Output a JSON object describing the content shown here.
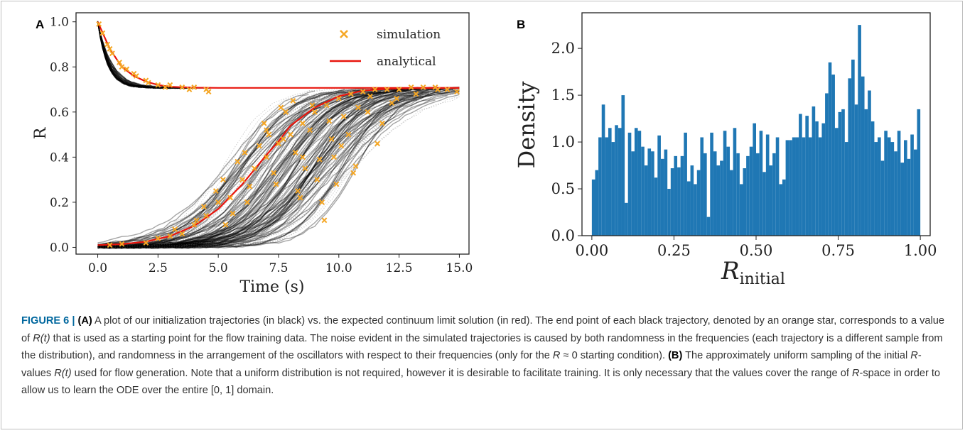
{
  "colors": {
    "simulation": "#f5a623",
    "analytical": "#e8150d",
    "trajectory": "#000000",
    "histogram": "#1f77b4",
    "caption_label": "#00679e"
  },
  "chart_data": [
    {
      "panel": "A",
      "type": "scatter",
      "xlabel": "Time (s)",
      "ylabel": "R",
      "xlim": [
        -0.9,
        15.4
      ],
      "ylim": [
        -0.03,
        1.04
      ],
      "xticks": [
        "0.0",
        "2.5",
        "5.0",
        "7.5",
        "10.0",
        "12.5",
        "15.0"
      ],
      "yticks": [
        "0.0",
        "0.2",
        "0.4",
        "0.6",
        "0.8",
        "1.0"
      ],
      "legend": {
        "placement": "top-right",
        "entries": [
          "simulation",
          "analytical"
        ]
      },
      "grid": false,
      "series": [
        {
          "name": "analytical",
          "kind": "line",
          "x": [
            0,
            0.5,
            1,
            1.5,
            2,
            2.5,
            3,
            4,
            5,
            7.5,
            10,
            15
          ],
          "y": [
            1.0,
            0.88,
            0.8,
            0.76,
            0.735,
            0.72,
            0.712,
            0.708,
            0.707,
            0.707,
            0.707,
            0.707
          ]
        },
        {
          "name": "analytical",
          "kind": "line",
          "x": [
            0,
            1,
            2,
            3,
            4,
            5,
            6,
            7,
            7.5,
            8,
            9,
            10,
            11,
            12,
            13,
            15
          ],
          "y": [
            0.01,
            0.014,
            0.025,
            0.05,
            0.095,
            0.17,
            0.28,
            0.41,
            0.47,
            0.54,
            0.62,
            0.67,
            0.695,
            0.703,
            0.706,
            0.707
          ]
        },
        {
          "name": "simulation",
          "kind": "points",
          "x": [
            0.05,
            0.2,
            0.4,
            0.6,
            0.9,
            1.2,
            1.6,
            2.0,
            2.5,
            3.0,
            3.5,
            4.0,
            4.5,
            4.6,
            1.0,
            1.5,
            2.8,
            0.5,
            2.1,
            3.8,
            0.5,
            1.0,
            2.0,
            2.5,
            3.0,
            3.5,
            4.0,
            4.5,
            5.0,
            5.5,
            6.0,
            6.5,
            7.0,
            7.5,
            8.0,
            8.5,
            9.0,
            9.5,
            10.0,
            10.5,
            11.0,
            11.5,
            12.0,
            12.5,
            13.0,
            13.5,
            14.0,
            14.5,
            14.9,
            3.2,
            4.1,
            4.9,
            5.2,
            5.8,
            6.3,
            6.7,
            7.1,
            7.4,
            7.8,
            8.2,
            8.6,
            8.9,
            9.3,
            9.7,
            10.2,
            10.8,
            11.3,
            5.6,
            6.1,
            6.9,
            7.6,
            8.3,
            9.1,
            9.8,
            10.4,
            11.2,
            12.2,
            13.2,
            14.1,
            4.4,
            5.3,
            6.2,
            7.3,
            8.1,
            8.8,
            9.6,
            10.1,
            10.7,
            11.8,
            8.4,
            9.2,
            9.9,
            10.6,
            11.6,
            12.4,
            7.0,
            7.7,
            8.5,
            9.4
          ],
          "y": [
            0.99,
            0.95,
            0.9,
            0.86,
            0.82,
            0.79,
            0.76,
            0.74,
            0.72,
            0.72,
            0.71,
            0.71,
            0.7,
            0.69,
            0.8,
            0.77,
            0.71,
            0.88,
            0.73,
            0.7,
            0.01,
            0.015,
            0.02,
            0.04,
            0.05,
            0.06,
            0.1,
            0.14,
            0.2,
            0.22,
            0.3,
            0.35,
            0.4,
            0.46,
            0.5,
            0.55,
            0.6,
            0.63,
            0.66,
            0.68,
            0.69,
            0.7,
            0.7,
            0.7,
            0.71,
            0.71,
            0.71,
            0.7,
            0.69,
            0.08,
            0.12,
            0.25,
            0.3,
            0.38,
            0.27,
            0.45,
            0.5,
            0.28,
            0.6,
            0.42,
            0.35,
            0.63,
            0.2,
            0.48,
            0.58,
            0.62,
            0.67,
            0.15,
            0.42,
            0.55,
            0.62,
            0.25,
            0.3,
            0.4,
            0.5,
            0.6,
            0.64,
            0.68,
            0.7,
            0.18,
            0.1,
            0.2,
            0.33,
            0.65,
            0.52,
            0.56,
            0.45,
            0.36,
            0.55,
            0.22,
            0.39,
            0.28,
            0.33,
            0.46,
            0.66,
            0.52,
            0.48,
            0.4,
            0.12
          ]
        }
      ]
    },
    {
      "panel": "B",
      "type": "bar",
      "xlabel": "R_initial",
      "ylabel": "Density",
      "xlim": [
        -0.03,
        1.03
      ],
      "ylim": [
        0.0,
        2.38
      ],
      "xticks": [
        "0.00",
        "0.25",
        "0.50",
        "0.75",
        "1.00"
      ],
      "yticks": [
        "0.0",
        "0.5",
        "1.0",
        "1.5",
        "2.0"
      ],
      "grid": false,
      "bins": 100,
      "values": [
        0.6,
        0.7,
        1.05,
        1.4,
        1.05,
        1.15,
        1.0,
        1.18,
        1.15,
        1.5,
        0.35,
        1.1,
        0.9,
        1.15,
        1.12,
        0.95,
        0.75,
        0.93,
        0.9,
        0.62,
        1.07,
        0.82,
        0.92,
        0.5,
        0.72,
        0.85,
        0.73,
        0.85,
        1.1,
        0.58,
        0.75,
        0.55,
        0.7,
        1.05,
        0.88,
        0.2,
        1.1,
        0.9,
        0.75,
        0.8,
        1.12,
        0.95,
        0.7,
        1.15,
        0.88,
        0.55,
        0.72,
        0.85,
        0.95,
        1.2,
        0.88,
        1.12,
        0.68,
        1.08,
        0.75,
        0.88,
        1.05,
        0.55,
        0.6,
        1.02,
        1.02,
        1.05,
        1.05,
        1.3,
        1.05,
        1.28,
        1.05,
        1.38,
        1.22,
        1.05,
        1.2,
        1.52,
        1.85,
        1.72,
        1.15,
        1.32,
        1.35,
        1.0,
        1.68,
        1.88,
        1.4,
        2.25,
        1.7,
        1.35,
        1.55,
        1.22,
        1.0,
        1.05,
        0.8,
        1.12,
        1.05,
        1.0,
        0.9,
        1.12,
        0.78,
        1.02,
        0.82,
        1.08,
        0.92,
        1.35
      ]
    }
  ],
  "figure": {
    "panel_a_letter": "A",
    "panel_b_letter": "B",
    "legend_simulation": "simulation",
    "legend_analytical": "analytical",
    "a_xlabel": "Time (s)",
    "a_ylabel": "R",
    "b_ylabel": "Density",
    "b_xlabel_main": "R",
    "b_xlabel_sub": "initial"
  },
  "caption": {
    "label": "FIGURE 6 |",
    "a_marker": "(A)",
    "text_1": " A plot of our initialization trajectories (in black) vs. the expected continuum limit solution (in red). The end point of each black trajectory, denoted by an orange star, corresponds to a value of ",
    "r_of_t_1": "R(t)",
    "text_2": " that is used as a starting point for the flow training data. The noise evident in the simulated trajectories is caused by both randomness in the frequencies (each trajectory is a different sample from the distribution), and randomness in the arrangement of the oscillators with respect to their frequencies (only for the ",
    "r_approx": "R",
    "text_3": " ≈ 0 starting condition). ",
    "b_marker": "(B)",
    "text_4": " The approximately uniform sampling of the initial ",
    "r_values": "R",
    "text_5": "-values ",
    "r_of_t_2": "R(t)",
    "text_6": " used for flow generation. Note that a uniform distribution is not required, however it is desirable to facilitate training. It is only necessary that the values cover the range of ",
    "r_space": "R",
    "text_7": "-space in order to allow us to learn the ODE over the entire [0, 1] domain."
  }
}
